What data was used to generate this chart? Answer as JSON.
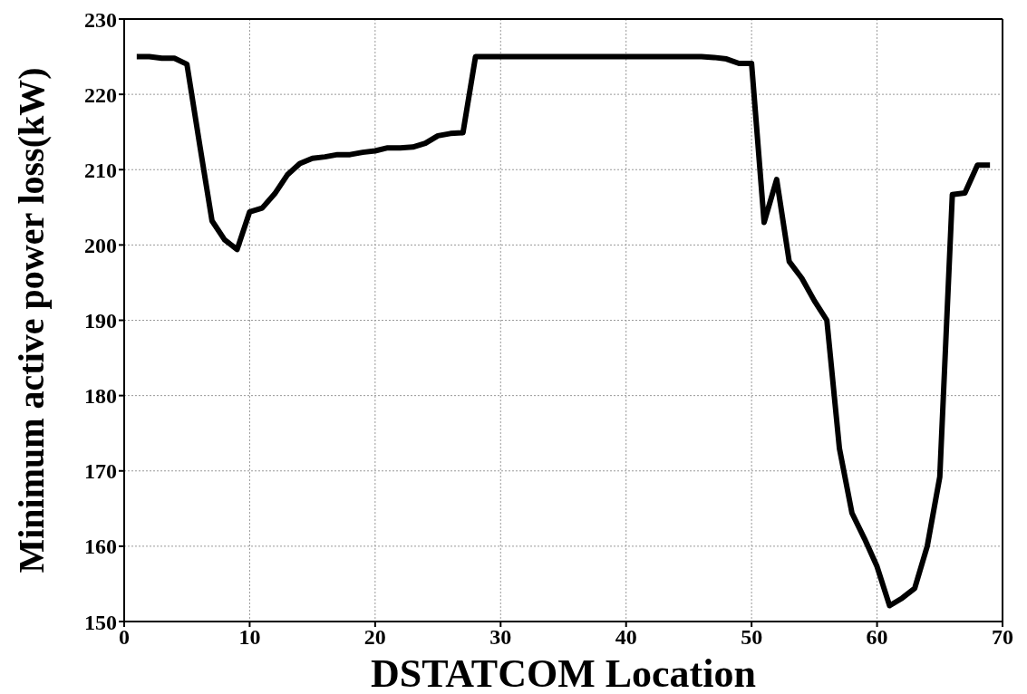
{
  "chart_data": {
    "type": "line",
    "xlabel": "DSTATCOM Location",
    "ylabel": "Minimum active power loss(kW)",
    "x": [
      1,
      2,
      3,
      4,
      5,
      6,
      7,
      8,
      9,
      10,
      11,
      12,
      13,
      14,
      15,
      16,
      17,
      18,
      19,
      20,
      21,
      22,
      23,
      24,
      25,
      26,
      27,
      28,
      29,
      30,
      31,
      32,
      33,
      34,
      35,
      36,
      37,
      38,
      39,
      40,
      41,
      42,
      43,
      44,
      45,
      46,
      47,
      48,
      49,
      50,
      51,
      52,
      53,
      54,
      55,
      56,
      57,
      58,
      59,
      60,
      61,
      62,
      63,
      64,
      65,
      66,
      67,
      68,
      69
    ],
    "series": [
      {
        "color": "#000000",
        "values": [
          225,
          225,
          224.8,
          224.8,
          224,
          213.5,
          203.2,
          200.7,
          199.4,
          204.4,
          204.9,
          206.8,
          209.3,
          210.8,
          211.5,
          211.7,
          212,
          212,
          212.3,
          212.5,
          212.9,
          212.9,
          213,
          213.5,
          214.5,
          214.8,
          214.9,
          225,
          225,
          225,
          225,
          225,
          225,
          225,
          225,
          225,
          225,
          225,
          225,
          225,
          225,
          225,
          225,
          225,
          225,
          225,
          224.9,
          224.7,
          224.1,
          224.1,
          203,
          208.7,
          197.8,
          195.6,
          192.6,
          190,
          173,
          164.4,
          161,
          157.3,
          152.1,
          153.1,
          154.4,
          160,
          169.2,
          206.7,
          206.9,
          210.6,
          210.6
        ]
      }
    ],
    "xlim": [
      0,
      70
    ],
    "xticks": [
      0,
      10,
      20,
      30,
      40,
      50,
      60,
      70
    ],
    "ylim": [
      150,
      230
    ],
    "yticks": [
      150,
      160,
      170,
      180,
      190,
      200,
      210,
      220,
      230
    ],
    "grid": true,
    "marker": "none",
    "line_style": "solid"
  }
}
